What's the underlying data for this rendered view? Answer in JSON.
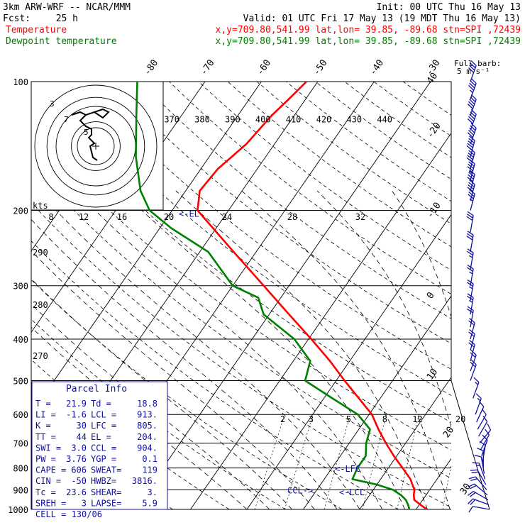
{
  "header": {
    "model": "3km ARW-WRF -- NCAR/MMM",
    "init": "Init: 00 UTC Thu 16 May 13",
    "fcst_label": "Fcst:",
    "fcst_value": "25 h",
    "valid": "Valid: 01 UTC Fri 17 May 13 (19 MDT Thu 16 May 13)",
    "temp_label": "Temperature",
    "dew_label": "Dewpoint temperature",
    "point_info": "x,y=709.80,541.99   lat,lon= 39.85, -89.68   stn=SPI ,72439"
  },
  "colors": {
    "temperature": "#ff0000",
    "dewpoint": "#008000",
    "wind": "#1010a0",
    "parcel_box": "#1010a0"
  },
  "full_barb_label": [
    "Full barb:",
    "5 m s⁻¹"
  ],
  "chart_data": {
    "type": "line",
    "diagram": "skew-T log-p",
    "pressure_levels": [
      100,
      200,
      300,
      400,
      500,
      600,
      700,
      800,
      900,
      1000
    ],
    "isotherm_labels": [
      "-80",
      "-70",
      "-60",
      "-50",
      "-40",
      "-30",
      "-20",
      "-10",
      "0",
      "10",
      "20",
      "30",
      "40"
    ],
    "theta_labels": [
      "370",
      "380",
      "390",
      "400",
      "410",
      "420",
      "430",
      "440"
    ],
    "theta_e_labels": [
      "290",
      "280",
      "270"
    ],
    "mixing_ratio_labels": [
      "2",
      "3",
      "5",
      "8",
      "12",
      "20"
    ],
    "series": [
      {
        "name": "Temperature",
        "points": [
          [
            1000,
            21.9
          ],
          [
            975,
            20.2
          ],
          [
            950,
            18.5
          ],
          [
            925,
            17.8
          ],
          [
            900,
            17.3
          ],
          [
            875,
            16.3
          ],
          [
            850,
            15.3
          ],
          [
            800,
            12.5
          ],
          [
            750,
            9.5
          ],
          [
            700,
            6.5
          ],
          [
            650,
            3.5
          ],
          [
            600,
            0.5
          ],
          [
            550,
            -3.8
          ],
          [
            500,
            -8.5
          ],
          [
            450,
            -13.5
          ],
          [
            400,
            -19.5
          ],
          [
            350,
            -26.5
          ],
          [
            300,
            -34.5
          ],
          [
            250,
            -44
          ],
          [
            200,
            -55.5
          ],
          [
            180,
            -57.5
          ],
          [
            160,
            -57
          ],
          [
            140,
            -55
          ],
          [
            120,
            -54
          ],
          [
            110,
            -53
          ],
          [
            100,
            -52
          ]
        ]
      },
      {
        "name": "Dewpoint temperature",
        "points": [
          [
            1000,
            18.8
          ],
          [
            975,
            18
          ],
          [
            950,
            17
          ],
          [
            925,
            15.5
          ],
          [
            900,
            13.5
          ],
          [
            875,
            10
          ],
          [
            850,
            5
          ],
          [
            800,
            4.5
          ],
          [
            750,
            4.5
          ],
          [
            700,
            3
          ],
          [
            650,
            2
          ],
          [
            600,
            -2
          ],
          [
            550,
            -8.5
          ],
          [
            500,
            -15.5
          ],
          [
            450,
            -17
          ],
          [
            400,
            -22.5
          ],
          [
            350,
            -31
          ],
          [
            320,
            -34
          ],
          [
            300,
            -40
          ],
          [
            250,
            -48.5
          ],
          [
            220,
            -58
          ],
          [
            200,
            -64
          ],
          [
            180,
            -68
          ],
          [
            150,
            -73
          ],
          [
            120,
            -78
          ],
          [
            100,
            -82
          ]
        ]
      }
    ],
    "wind_barbs": [
      {
        "p": 1000,
        "spd": 6,
        "dir": 190
      },
      {
        "p": 975,
        "spd": 10,
        "dir": 200
      },
      {
        "p": 950,
        "spd": 12,
        "dir": 210
      },
      {
        "p": 925,
        "spd": 12,
        "dir": 220
      },
      {
        "p": 900,
        "spd": 12,
        "dir": 230
      },
      {
        "p": 875,
        "spd": 11,
        "dir": 240
      },
      {
        "p": 850,
        "spd": 9,
        "dir": 250
      },
      {
        "p": 825,
        "spd": 7,
        "dir": 260
      },
      {
        "p": 800,
        "spd": 6,
        "dir": 270
      },
      {
        "p": 775,
        "spd": 5,
        "dir": 280
      },
      {
        "p": 750,
        "spd": 5,
        "dir": 290
      },
      {
        "p": 725,
        "spd": 5,
        "dir": 300
      },
      {
        "p": 700,
        "spd": 6,
        "dir": 310
      },
      {
        "p": 675,
        "spd": 6,
        "dir": 300
      },
      {
        "p": 650,
        "spd": 7,
        "dir": 300
      },
      {
        "p": 625,
        "spd": 7,
        "dir": 295
      },
      {
        "p": 600,
        "spd": 8,
        "dir": 290
      },
      {
        "p": 550,
        "spd": 9,
        "dir": 290
      },
      {
        "p": 500,
        "spd": 10,
        "dir": 290
      },
      {
        "p": 475,
        "spd": 10,
        "dir": 290
      },
      {
        "p": 450,
        "spd": 11,
        "dir": 285
      },
      {
        "p": 425,
        "spd": 11,
        "dir": 285
      },
      {
        "p": 400,
        "spd": 12,
        "dir": 285
      },
      {
        "p": 375,
        "spd": 12,
        "dir": 280
      },
      {
        "p": 350,
        "spd": 13,
        "dir": 280
      },
      {
        "p": 325,
        "spd": 13,
        "dir": 280
      },
      {
        "p": 300,
        "spd": 14,
        "dir": 280
      },
      {
        "p": 275,
        "spd": 14,
        "dir": 280
      },
      {
        "p": 250,
        "spd": 15,
        "dir": 280
      },
      {
        "p": 225,
        "spd": 16,
        "dir": 280
      },
      {
        "p": 200,
        "spd": 18,
        "dir": 285
      },
      {
        "p": 190,
        "spd": 20,
        "dir": 285
      },
      {
        "p": 180,
        "spd": 22,
        "dir": 285
      },
      {
        "p": 170,
        "spd": 24,
        "dir": 285
      },
      {
        "p": 160,
        "spd": 25,
        "dir": 285
      },
      {
        "p": 150,
        "spd": 26,
        "dir": 285
      },
      {
        "p": 140,
        "spd": 27,
        "dir": 290
      },
      {
        "p": 130,
        "spd": 27,
        "dir": 290
      },
      {
        "p": 120,
        "spd": 26,
        "dir": 290
      },
      {
        "p": 110,
        "spd": 24,
        "dir": 290
      },
      {
        "p": 100,
        "spd": 22,
        "dir": 290
      }
    ],
    "markers": {
      "el": "<-EL",
      "lfc": "<-LFC",
      "lcl": "<-LCL",
      "ccl": "CCL->"
    },
    "hodograph": {
      "unit_label": "kts",
      "speed_ring_labels": [
        "8",
        "12",
        "16",
        "20",
        "24",
        "28",
        "32"
      ],
      "trace_labels": [
        "7",
        "5",
        "3"
      ],
      "trace": [
        [
          -2,
          -4
        ],
        [
          -5,
          -2
        ],
        [
          -6,
          2
        ],
        [
          -7,
          6
        ],
        [
          -4,
          8
        ],
        [
          -8,
          12
        ],
        [
          -6,
          14
        ],
        [
          -6,
          18
        ],
        [
          -10,
          20
        ],
        [
          -14,
          24
        ],
        [
          -10,
          28
        ],
        [
          -4,
          30
        ],
        [
          2,
          26
        ],
        [
          6,
          30
        ],
        [
          2,
          32
        ],
        [
          -10,
          28
        ],
        [
          -14,
          30
        ],
        [
          -20,
          28
        ]
      ]
    }
  },
  "parcel_info": {
    "title": "Parcel Info",
    "rows": [
      [
        "T  =",
        "21.9",
        "Td =",
        "18.8"
      ],
      [
        "LI =",
        "-1.6",
        "LCL =",
        "913."
      ],
      [
        "K  =",
        "30",
        "LFC =",
        "805."
      ],
      [
        "TT =",
        "44",
        "EL  =",
        "204."
      ],
      [
        "SWI =",
        "3.0",
        "CCL =",
        "904."
      ],
      [
        "PW =",
        "3.76",
        "YGP =",
        "0.1"
      ],
      [
        "CAPE =",
        "606",
        "SWEAT=",
        "119"
      ],
      [
        "CIN =",
        "-50",
        "HWBZ=",
        "3816."
      ],
      [
        "Tc =",
        "23.6",
        "SHEAR=",
        "3."
      ],
      [
        "SREH =",
        "3",
        "LAPSE=",
        "5.9"
      ],
      [
        "CELL = 130/06"
      ]
    ]
  }
}
